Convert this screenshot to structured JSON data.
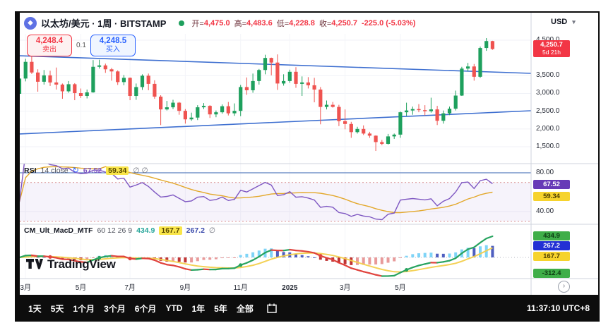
{
  "header": {
    "symbol_title": "以太坊/美元 · 1周 · BITSTAMP",
    "ohlc": {
      "open_label": "开=",
      "open": "4,475.0",
      "high_label": "高=",
      "high": "4,483.6",
      "low_label": "低=",
      "low": "4,228.8",
      "close_label": "收=",
      "close": "4,250.7",
      "change": "-225.0 (-5.03%)"
    }
  },
  "trade_panel": {
    "sell_price": "4,248.4",
    "sell_label": "卖出",
    "spread": "0.1",
    "buy_price": "4,248.5",
    "buy_label": "买入"
  },
  "price_axis": {
    "currency": "USD",
    "gridlines": [
      {
        "label": "4,500.0",
        "price": 4500
      },
      {
        "label": "3,500.0",
        "price": 3500
      },
      {
        "label": "3,000.0",
        "price": 3000
      },
      {
        "label": "2,500.0",
        "price": 2500
      },
      {
        "label": "2,000.0",
        "price": 2000
      },
      {
        "label": "1,500.0",
        "price": 1500
      }
    ],
    "current_price": "4,250.7",
    "current_price_num": 4250.7,
    "countdown": "5d 21h"
  },
  "rsi_panel": {
    "title": "RSI",
    "params": "14 close",
    "value": "67.52",
    "value_num": 67.52,
    "ma_value": "59.34",
    "ma_value_num": 59.34,
    "zeros": "∅ ∅",
    "axis_labels": [
      {
        "text": "80.00",
        "v": 80
      },
      {
        "text": "40.00",
        "v": 40
      }
    ]
  },
  "macd_panel": {
    "title": "CM_Ult_MacD_MTF",
    "params": "60 12 26 9",
    "macd_value": "434.9",
    "macd_num": 434.9,
    "signal_value": "167.7",
    "signal_num": 167.7,
    "hist_value": "267.2",
    "hist_num": 267.2,
    "zero": "∅",
    "mtf_value": "-312.4",
    "mtf_num": -312.4
  },
  "time_axis": {
    "ticks": [
      {
        "label": "3月",
        "i": 2,
        "bold": false
      },
      {
        "label": "5月",
        "i": 11,
        "bold": false
      },
      {
        "label": "7月",
        "i": 19,
        "bold": false
      },
      {
        "label": "9月",
        "i": 28,
        "bold": false
      },
      {
        "label": "11月",
        "i": 37,
        "bold": false
      },
      {
        "label": "2025",
        "i": 45,
        "bold": true
      },
      {
        "label": "3月",
        "i": 54,
        "bold": false
      },
      {
        "label": "5月",
        "i": 63,
        "bold": false
      }
    ]
  },
  "toolbar": {
    "ranges": [
      "1天",
      "5天",
      "1个月",
      "3个月",
      "6个月",
      "YTD",
      "1年",
      "5年",
      "全部"
    ],
    "clock": "11:37:10 UTC+8"
  },
  "logo_text": "TradingView",
  "colors": {
    "up": "#1ea05d",
    "down": "#ef5350",
    "trendline": "#3e6fd0",
    "rsi_line": "#7e57c2",
    "rsi_ma": "#e3a82b",
    "macd_up": "#27a35f",
    "macd_down": "#e0433d",
    "signal": "#f3cf4c",
    "hist_pos_inc": "#7fd4f7",
    "hist_pos_dec": "#4f5fc0",
    "hist_neg_dec": "#c03434",
    "hist_neg_inc": "#e89a9a",
    "current_tag_bg": "#f23645"
  },
  "chart_data": {
    "type": "candlestick",
    "symbol": "ETH/USD",
    "interval": "1W",
    "exchange": "BITSTAMP",
    "ylim": [
      1060,
      4680
    ],
    "candles": [
      [
        2990,
        3540,
        2850,
        3420
      ],
      [
        3420,
        3975,
        3340,
        3890
      ],
      [
        3890,
        4093,
        3550,
        3590
      ],
      [
        3590,
        3680,
        3050,
        3330
      ],
      [
        3330,
        3660,
        3250,
        3510
      ],
      [
        3510,
        3640,
        3210,
        3310
      ],
      [
        3310,
        3730,
        3110,
        3250
      ],
      [
        3250,
        3280,
        2850,
        3060
      ],
      [
        3060,
        3350,
        3020,
        3260
      ],
      [
        3260,
        3290,
        2810,
        3010
      ],
      [
        3010,
        3140,
        2870,
        2930
      ],
      [
        2930,
        3110,
        2860,
        3030
      ],
      [
        3030,
        3940,
        3020,
        3750
      ],
      [
        3750,
        3950,
        3700,
        3790
      ],
      [
        3790,
        3840,
        3580,
        3680
      ],
      [
        3680,
        3720,
        3360,
        3620
      ],
      [
        3620,
        3650,
        3240,
        3320
      ],
      [
        3320,
        3520,
        3230,
        3440
      ],
      [
        3440,
        3450,
        2810,
        2930
      ],
      [
        2930,
        3280,
        2820,
        3180
      ],
      [
        3180,
        3540,
        3100,
        3500
      ],
      [
        3500,
        3560,
        3090,
        3270
      ],
      [
        3270,
        3370,
        2850,
        2910
      ],
      [
        2910,
        2950,
        2110,
        2550
      ],
      [
        2550,
        2790,
        2520,
        2610
      ],
      [
        2610,
        2820,
        2560,
        2740
      ],
      [
        2740,
        2760,
        2400,
        2510
      ],
      [
        2510,
        2560,
        2150,
        2270
      ],
      [
        2270,
        2460,
        2230,
        2320
      ],
      [
        2320,
        2670,
        2250,
        2610
      ],
      [
        2610,
        2730,
        2560,
        2650
      ],
      [
        2650,
        2670,
        2310,
        2410
      ],
      [
        2410,
        2520,
        2330,
        2470
      ],
      [
        2470,
        2690,
        2430,
        2640
      ],
      [
        2640,
        2760,
        2380,
        2440
      ],
      [
        2440,
        2720,
        2370,
        2510
      ],
      [
        2510,
        3240,
        2360,
        3180
      ],
      [
        3180,
        3450,
        2960,
        3090
      ],
      [
        3090,
        3560,
        3020,
        3350
      ],
      [
        3350,
        3690,
        3250,
        3660
      ],
      [
        3660,
        4090,
        3540,
        4000
      ],
      [
        4000,
        4010,
        3510,
        3870
      ],
      [
        3870,
        4100,
        3100,
        3280
      ],
      [
        3280,
        3540,
        3220,
        3350
      ],
      [
        3350,
        3670,
        3300,
        3610
      ],
      [
        3610,
        3740,
        3160,
        3270
      ],
      [
        3270,
        3480,
        2930,
        3310
      ],
      [
        3310,
        3460,
        3140,
        3230
      ],
      [
        3230,
        3440,
        2750,
        3110
      ],
      [
        3110,
        3180,
        2130,
        2620
      ],
      [
        2620,
        2800,
        2550,
        2680
      ],
      [
        2680,
        2760,
        2600,
        2620
      ],
      [
        2620,
        2680,
        2080,
        2220
      ],
      [
        2220,
        2550,
        1990,
        2140
      ],
      [
        2140,
        2200,
        1750,
        1910
      ],
      [
        1910,
        2060,
        1870,
        2000
      ],
      [
        2000,
        2100,
        1830,
        1870
      ],
      [
        1870,
        1920,
        1750,
        1810
      ],
      [
        1810,
        1820,
        1380,
        1630
      ],
      [
        1630,
        1690,
        1540,
        1580
      ],
      [
        1580,
        1860,
        1560,
        1790
      ],
      [
        1790,
        1870,
        1720,
        1840
      ],
      [
        1840,
        2490,
        1750,
        2470
      ],
      [
        2470,
        2740,
        2360,
        2520
      ],
      [
        2520,
        2630,
        2400,
        2560
      ],
      [
        2560,
        2700,
        2470,
        2530
      ],
      [
        2530,
        2670,
        2380,
        2500
      ],
      [
        2500,
        2880,
        2460,
        2550
      ],
      [
        2550,
        2650,
        2110,
        2230
      ],
      [
        2230,
        2520,
        2150,
        2440
      ],
      [
        2440,
        2630,
        2390,
        2570
      ],
      [
        2570,
        3080,
        2520,
        2940
      ],
      [
        2940,
        3750,
        2930,
        3700
      ],
      [
        3700,
        3860,
        3620,
        3760
      ],
      [
        3760,
        3830,
        3360,
        3470
      ],
      [
        3470,
        4320,
        3440,
        4280
      ],
      [
        4280,
        4560,
        4200,
        4475.7
      ],
      [
        4475,
        4483.6,
        4228.8,
        4250.7
      ]
    ],
    "trendlines": [
      {
        "name": "upper-channel-line",
        "p_start": 4063,
        "p_end": 3566
      },
      {
        "name": "lower-channel-line",
        "p_start": 1858,
        "p_end": 2513
      }
    ],
    "indicators": {
      "rsi": {
        "length": 14,
        "source": "close",
        "band_top": 80,
        "band_upper": 70,
        "band_lower": 30,
        "current": 67.52,
        "ma_current": 59.34
      },
      "macd": {
        "fast": 12,
        "slow": 26,
        "signal": 9,
        "current": 434.9,
        "signal_current": 167.7,
        "hist_current": 267.2,
        "mtf_current": -312.4
      }
    }
  }
}
